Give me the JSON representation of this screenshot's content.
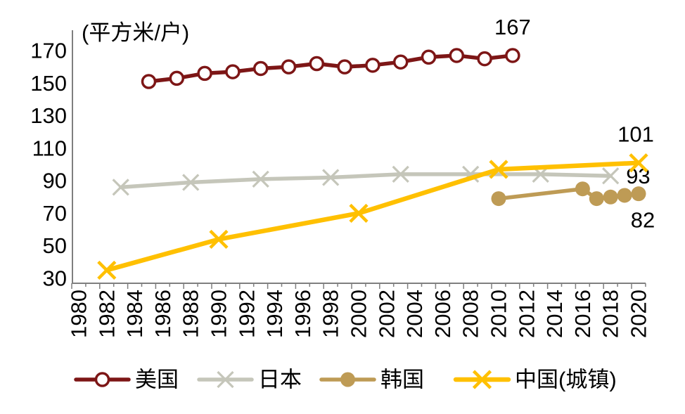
{
  "chart_data": {
    "type": "line",
    "title": "",
    "unit": "(平方米/户)",
    "grid": false,
    "legend_position": "bottom",
    "x_range": [
      1980,
      2020
    ],
    "y_range": [
      30,
      170
    ],
    "x_axis": {
      "labels": [
        "1980",
        "1982",
        "1984",
        "1986",
        "1988",
        "1990",
        "1992",
        "1994",
        "1996",
        "1998",
        "2000",
        "2002",
        "2004",
        "2006",
        "2008",
        "2010",
        "2012",
        "2014",
        "2016",
        "2018",
        "2020"
      ]
    },
    "y_axis": {
      "ticks": [
        "30",
        "50",
        "70",
        "90",
        "110",
        "130",
        "150",
        "170"
      ]
    },
    "series": [
      {
        "name": "美国",
        "color": "#7D1616",
        "marker": "open-circle",
        "end_label": "167",
        "end_label_pos": "above",
        "points": [
          [
            1985,
            151
          ],
          [
            1987,
            153
          ],
          [
            1989,
            156
          ],
          [
            1991,
            157
          ],
          [
            1993,
            159
          ],
          [
            1995,
            160
          ],
          [
            1997,
            162
          ],
          [
            1999,
            160
          ],
          [
            2001,
            161
          ],
          [
            2003,
            163
          ],
          [
            2005,
            166
          ],
          [
            2007,
            167
          ],
          [
            2009,
            165
          ],
          [
            2011,
            167
          ]
        ]
      },
      {
        "name": "日本",
        "color": "#C5C6BA",
        "marker": "x",
        "end_label": "93",
        "end_label_pos": "right",
        "points": [
          [
            1983,
            86
          ],
          [
            1988,
            89
          ],
          [
            1993,
            91
          ],
          [
            1998,
            92
          ],
          [
            2003,
            94
          ],
          [
            2008,
            94
          ],
          [
            2013,
            94
          ],
          [
            2018,
            93
          ]
        ]
      },
      {
        "name": "韩国",
        "color": "#BE9B55",
        "marker": "dot",
        "end_label": "82",
        "end_label_pos": "below",
        "points": [
          [
            2010,
            79
          ],
          [
            2016,
            85
          ],
          [
            2017,
            79
          ],
          [
            2018,
            80
          ],
          [
            2019,
            81
          ],
          [
            2020,
            82
          ]
        ]
      },
      {
        "name": "中国(城镇)",
        "color": "#FFC000",
        "marker": "x",
        "end_label": "101",
        "end_label_pos": "above",
        "points": [
          [
            1982,
            35
          ],
          [
            1990,
            54
          ],
          [
            2000,
            70
          ],
          [
            2010,
            97
          ],
          [
            2020,
            101
          ]
        ]
      }
    ]
  },
  "colors": {
    "axis": "#7F7F7F",
    "text": "#000000",
    "background": "#FFFFFF"
  }
}
